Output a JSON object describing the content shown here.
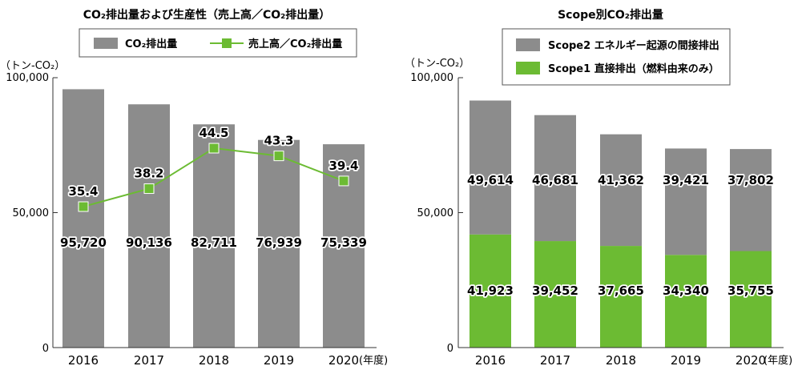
{
  "chart_data": [
    {
      "type": "bar",
      "title": "CO₂排出量および生産性（売上高／CO₂排出量）",
      "ylabel": "（トン-CO₂）",
      "xlabel_unit": "(年度)",
      "categories": [
        "2016",
        "2017",
        "2018",
        "2019",
        "2020"
      ],
      "ylim": [
        0,
        100000
      ],
      "yticks": [
        "0",
        "50,000",
        "100,000"
      ],
      "ytick_values": [
        0,
        50000,
        100000
      ],
      "legend": "top",
      "series": [
        {
          "name": "CO₂排出量",
          "type": "bar",
          "color": "#8c8c8c",
          "values": [
            95720,
            90136,
            82711,
            76939,
            75339
          ],
          "labels": [
            "95,720",
            "90,136",
            "82,711",
            "76,939",
            "75,339"
          ]
        },
        {
          "name": "売上高／CO₂排出量",
          "type": "line",
          "color": "#6cbb33",
          "values": [
            35.4,
            38.2,
            44.5,
            43.3,
            39.4
          ],
          "labels": [
            "35.4",
            "38.2",
            "44.5",
            "43.3",
            "39.4"
          ]
        }
      ]
    },
    {
      "type": "bar",
      "stacked": true,
      "title": "Scope別CO₂排出量",
      "ylabel": "（トン-CO₂）",
      "xlabel_unit": "(年度)",
      "categories": [
        "2016",
        "2017",
        "2018",
        "2019",
        "2020"
      ],
      "ylim": [
        0,
        100000
      ],
      "yticks": [
        "0",
        "50,000",
        "100,000"
      ],
      "ytick_values": [
        0,
        50000,
        100000
      ],
      "legend": "top",
      "series": [
        {
          "name": "Scope1 直接排出（燃料由来のみ）",
          "color": "#6cbb33",
          "values": [
            41923,
            39452,
            37665,
            34340,
            35755
          ],
          "labels": [
            "41,923",
            "39,452",
            "37,665",
            "34,340",
            "35,755"
          ]
        },
        {
          "name": "Scope2 エネルギー起源の間接排出",
          "color": "#8c8c8c",
          "values": [
            49614,
            46681,
            41362,
            39421,
            37802
          ],
          "labels": [
            "49,614",
            "46,681",
            "41,362",
            "39,421",
            "37,802"
          ]
        }
      ]
    }
  ]
}
